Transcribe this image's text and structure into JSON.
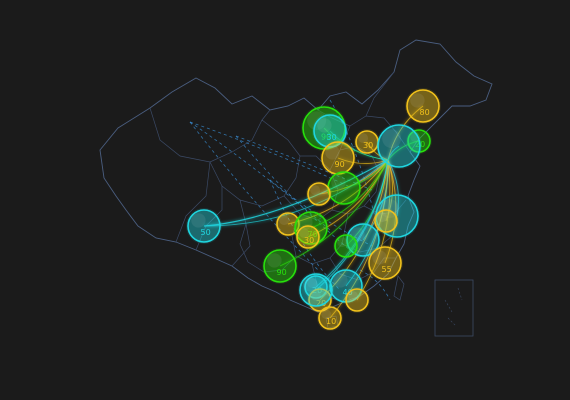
{
  "colors": {
    "background": "#1b1b1b",
    "border": "#3b4a66",
    "dashed_route": "#3a8fd6",
    "cyan": "#1fd6e0",
    "green": "#27e00c",
    "yellow": "#f2c21b"
  },
  "markers": [
    {
      "value": "80",
      "color": "yellow",
      "scale": "md"
    },
    {
      "value": "90",
      "color": "green",
      "scale": "lg"
    },
    {
      "value": "30",
      "color": "cyan",
      "scale": "md"
    },
    {
      "value": "90",
      "color": "yellow",
      "scale": "md"
    },
    {
      "value": "30",
      "color": "yellow",
      "scale": "sm"
    },
    {
      "value": "20",
      "color": "green",
      "scale": "sm"
    },
    {
      "value": "",
      "color": "cyan",
      "scale": "lg"
    },
    {
      "value": "",
      "color": "green",
      "scale": "md"
    },
    {
      "value": "",
      "color": "yellow",
      "scale": "sm"
    },
    {
      "value": "",
      "color": "cyan",
      "scale": "lg"
    },
    {
      "value": "",
      "color": "yellow",
      "scale": "sm"
    },
    {
      "value": "50",
      "color": "cyan",
      "scale": "md"
    },
    {
      "value": "70",
      "color": "green",
      "scale": "md"
    },
    {
      "value": "30",
      "color": "yellow",
      "scale": "sm"
    },
    {
      "value": "",
      "color": "cyan",
      "scale": "md"
    },
    {
      "value": "",
      "color": "green",
      "scale": "sm"
    },
    {
      "value": "",
      "color": "yellow",
      "scale": "sm"
    },
    {
      "value": "55",
      "color": "yellow",
      "scale": "md"
    },
    {
      "value": "90",
      "color": "green",
      "scale": "md"
    },
    {
      "value": "40",
      "color": "cyan",
      "scale": "md"
    },
    {
      "value": "20",
      "color": "cyan",
      "scale": "sm"
    },
    {
      "value": "20",
      "color": "yellow",
      "scale": "sm"
    },
    {
      "value": "10",
      "color": "yellow",
      "scale": "sm"
    },
    {
      "value": "",
      "color": "cyan",
      "scale": "md"
    },
    {
      "value": "",
      "color": "yellow",
      "scale": "sm"
    }
  ]
}
